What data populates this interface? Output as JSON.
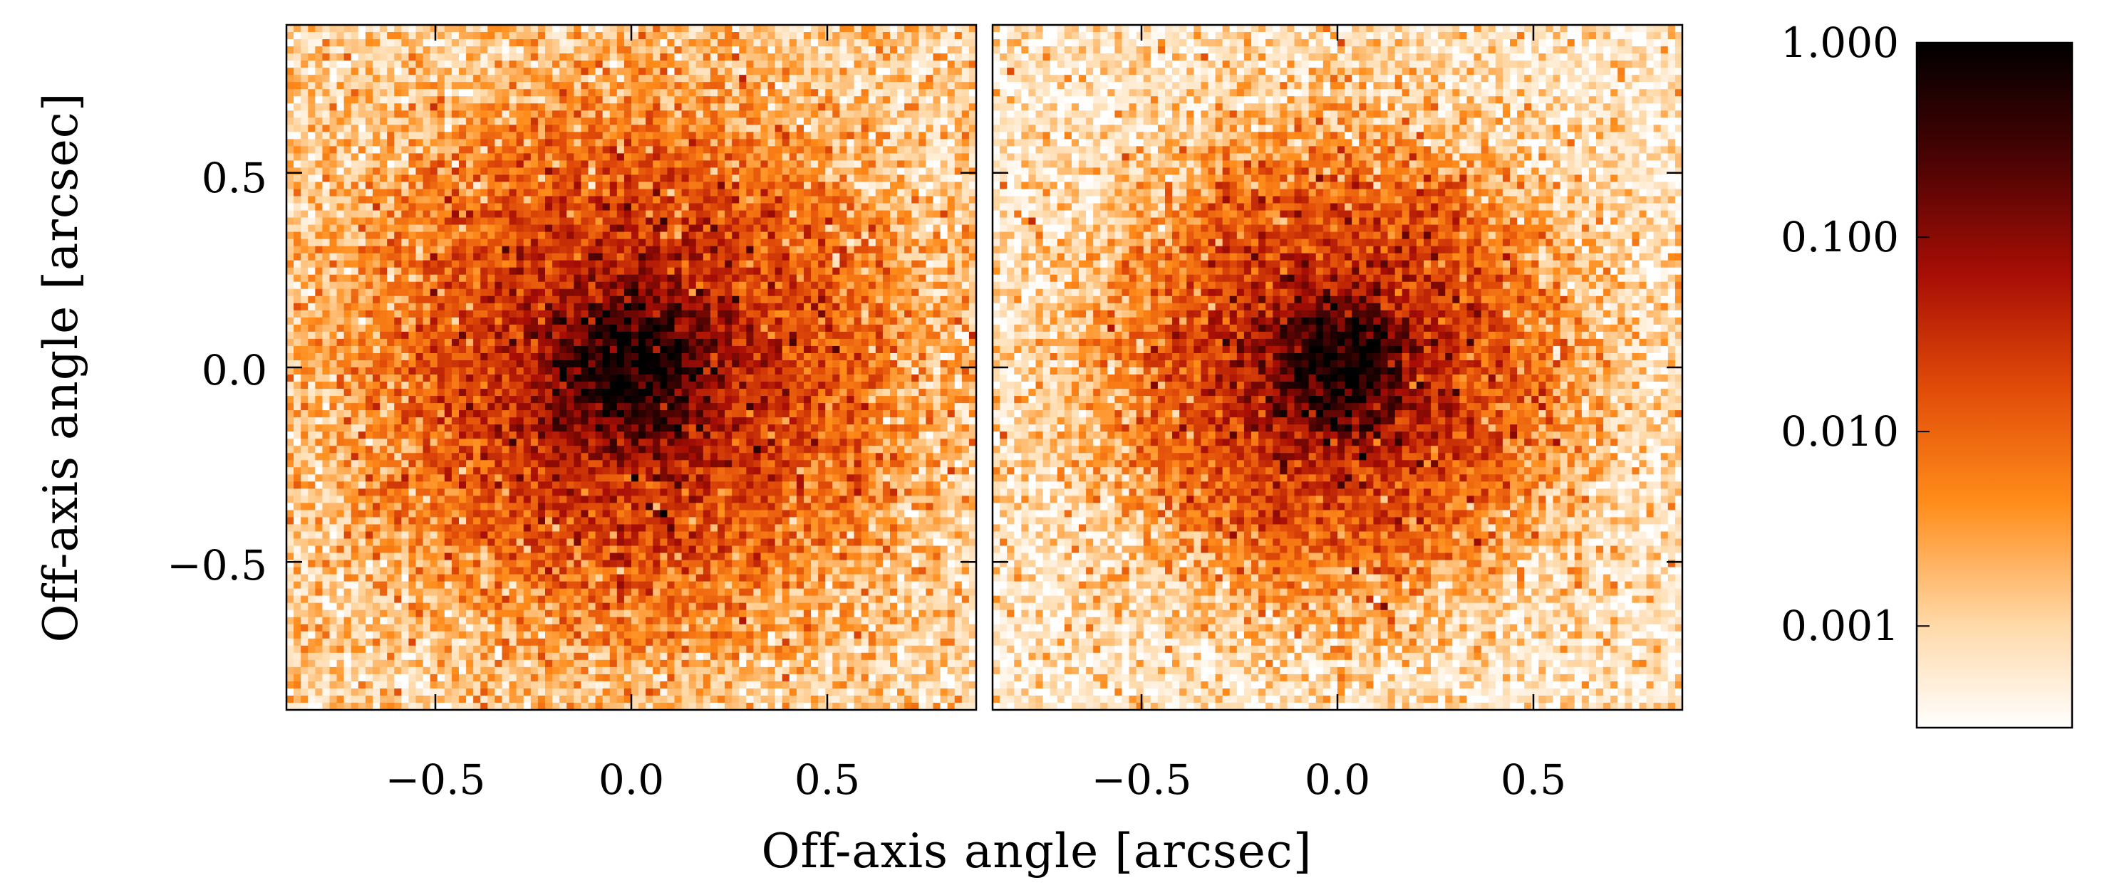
{
  "chart_data": {
    "type": "heatmap",
    "xlabel": "Off-axis angle [arcsec]",
    "ylabel": "Off-axis angle [arcsec]",
    "xlim": [
      -0.88,
      0.88
    ],
    "ylim": [
      -0.88,
      0.88
    ],
    "x_ticks": [
      {
        "value": -0.5,
        "label": "−0.5"
      },
      {
        "value": 0.0,
        "label": "0.0"
      },
      {
        "value": 0.5,
        "label": "0.5"
      }
    ],
    "y_ticks": [
      {
        "value": 0.5,
        "label": "0.5"
      },
      {
        "value": 0.0,
        "label": "0.0"
      },
      {
        "value": -0.5,
        "label": "−0.5"
      }
    ],
    "panels": [
      {
        "center": [
          0.0,
          0.0
        ],
        "peak": 1.0,
        "core_sigma": 0.09,
        "halo_sigma": 0.28,
        "background": 0.0012
      },
      {
        "center": [
          0.0,
          0.0
        ],
        "peak": 1.0,
        "core_sigma": 0.08,
        "halo_sigma": 0.24,
        "background": 0.0007
      }
    ],
    "colorbar": {
      "scale": "log",
      "range": [
        0.0003,
        1.0
      ],
      "ticks": [
        {
          "value": 1.0,
          "label": "1.000"
        },
        {
          "value": 0.1,
          "label": "0.100"
        },
        {
          "value": 0.01,
          "label": "0.010"
        },
        {
          "value": 0.001,
          "label": "0.001"
        }
      ],
      "colormap": [
        "#ffffff",
        "#ffd9a8",
        "#ff8c1a",
        "#e04a08",
        "#a80e05",
        "#4a0303",
        "#000000"
      ]
    }
  }
}
